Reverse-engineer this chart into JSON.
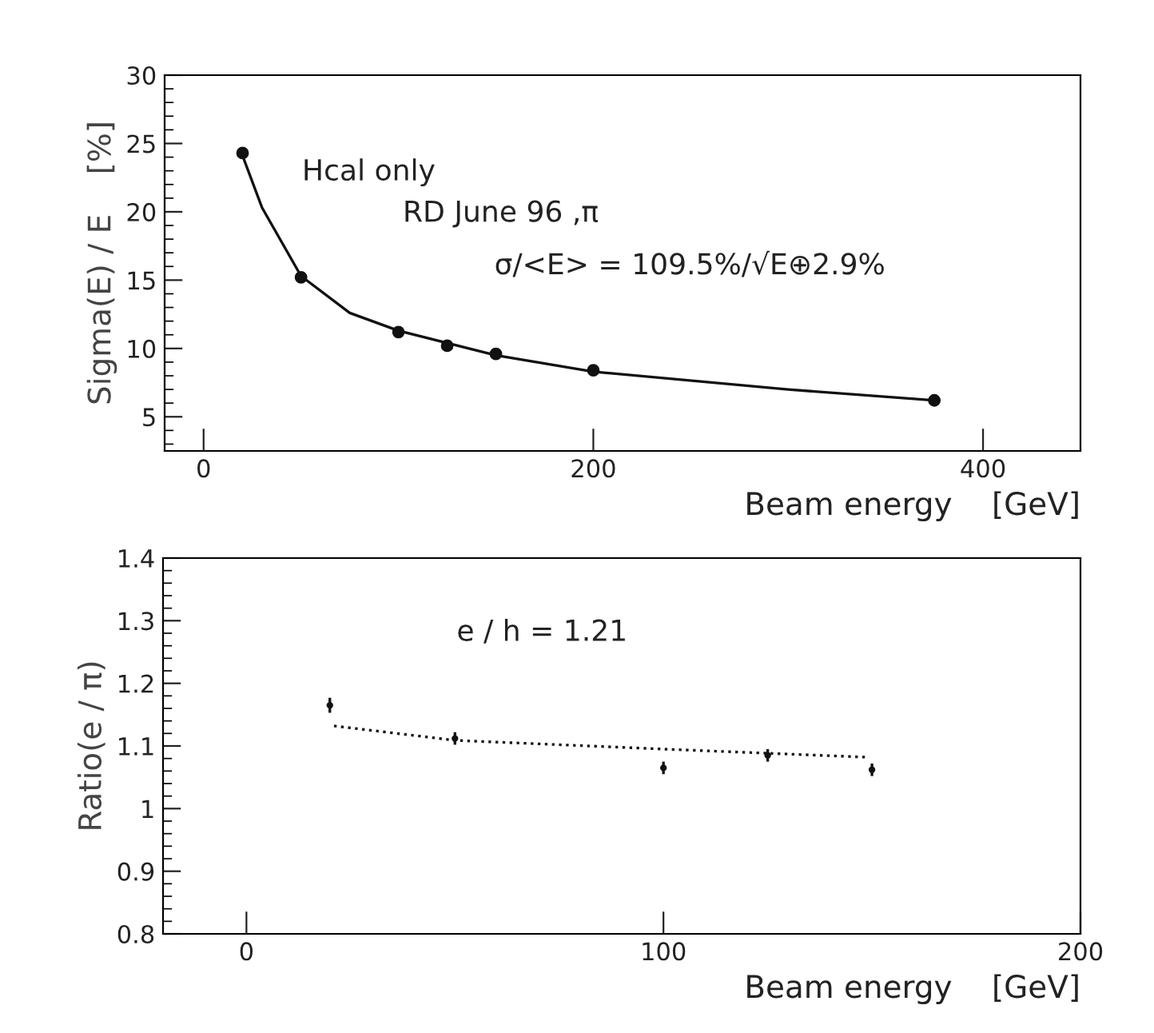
{
  "chart_data": [
    {
      "type": "scatter",
      "xlabel": "Beam energy    [GeV]",
      "ylabel": "Sigma(E) / E    [%]",
      "annotations": [
        "Hcal only",
        "RD June 96 ,π",
        "σ/<E> = 109.5%/√E⊕2.9%"
      ],
      "xlim": [
        -20,
        450
      ],
      "xticks": [
        0,
        200,
        400
      ],
      "ylim": [
        2.5,
        30
      ],
      "yticks": [
        5,
        10,
        15,
        20,
        25,
        30
      ],
      "grid": false,
      "legend": false,
      "series": [
        {
          "type": "scatter",
          "color": "#111111",
          "marker": "circle",
          "x": [
            20,
            50,
            100,
            125,
            150,
            200,
            375
          ],
          "values": [
            24.3,
            15.2,
            11.2,
            10.2,
            9.6,
            8.4,
            6.2
          ]
        },
        {
          "type": "line",
          "color": "#111111",
          "line_style": "solid",
          "x": [
            20,
            30,
            50,
            75,
            100,
            150,
            200,
            300,
            375
          ],
          "values": [
            24.1,
            20.3,
            15.3,
            12.6,
            11.3,
            9.5,
            8.3,
            7.0,
            6.2
          ]
        }
      ]
    },
    {
      "type": "scatter",
      "xlabel": "Beam energy    [GeV]",
      "ylabel": "Ratio(e / π)",
      "annotations": [
        "e / h = 1.21"
      ],
      "xlim": [
        -20,
        200
      ],
      "xticks": [
        0,
        100,
        200
      ],
      "ylim": [
        0.8,
        1.4
      ],
      "yticks": [
        {
          "value": 0.8,
          "label": "0.8"
        },
        {
          "value": 0.9,
          "label": "0.9"
        },
        {
          "value": 1.0,
          "label": "1"
        },
        {
          "value": 1.1,
          "label": "1.1"
        },
        {
          "value": 1.2,
          "label": "1.2"
        },
        {
          "value": 1.3,
          "label": "1.3"
        },
        {
          "value": 1.4,
          "label": "1.4"
        }
      ],
      "grid": false,
      "legend": false,
      "series": [
        {
          "type": "scatter",
          "color": "#111111",
          "x": [
            20,
            50,
            100,
            125,
            150
          ],
          "values": [
            1.165,
            1.112,
            1.065,
            1.085,
            1.062
          ],
          "errors": [
            0.012,
            0.01,
            0.01,
            0.01,
            0.01
          ]
        },
        {
          "type": "line",
          "color": "#111111",
          "line_style": "dotted",
          "x": [
            21,
            50,
            100,
            149
          ],
          "values": [
            1.132,
            1.109,
            1.095,
            1.082
          ]
        }
      ]
    }
  ]
}
